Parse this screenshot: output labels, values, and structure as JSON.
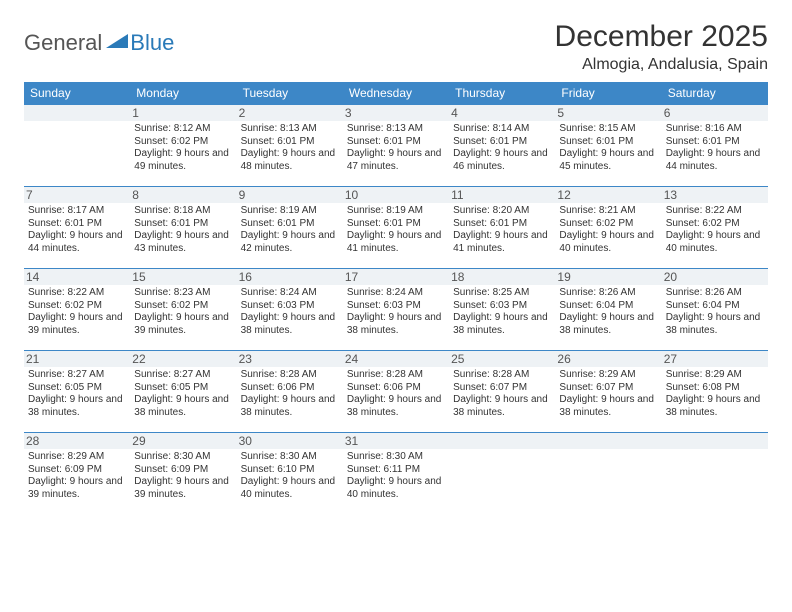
{
  "logo": {
    "general": "General",
    "blue": "Blue"
  },
  "title": "December 2025",
  "location": "Almogia, Andalusia, Spain",
  "header_bg": "#3d87c7",
  "header_fg": "#ffffff",
  "border_color": "#3d87c7",
  "daynum_bg": "#eef2f5",
  "days": [
    "Sunday",
    "Monday",
    "Tuesday",
    "Wednesday",
    "Thursday",
    "Friday",
    "Saturday"
  ],
  "weeks": [
    [
      null,
      {
        "n": "1",
        "sr": "8:12 AM",
        "ss": "6:02 PM",
        "dl": "9 hours and 49 minutes."
      },
      {
        "n": "2",
        "sr": "8:13 AM",
        "ss": "6:01 PM",
        "dl": "9 hours and 48 minutes."
      },
      {
        "n": "3",
        "sr": "8:13 AM",
        "ss": "6:01 PM",
        "dl": "9 hours and 47 minutes."
      },
      {
        "n": "4",
        "sr": "8:14 AM",
        "ss": "6:01 PM",
        "dl": "9 hours and 46 minutes."
      },
      {
        "n": "5",
        "sr": "8:15 AM",
        "ss": "6:01 PM",
        "dl": "9 hours and 45 minutes."
      },
      {
        "n": "6",
        "sr": "8:16 AM",
        "ss": "6:01 PM",
        "dl": "9 hours and 44 minutes."
      }
    ],
    [
      {
        "n": "7",
        "sr": "8:17 AM",
        "ss": "6:01 PM",
        "dl": "9 hours and 44 minutes."
      },
      {
        "n": "8",
        "sr": "8:18 AM",
        "ss": "6:01 PM",
        "dl": "9 hours and 43 minutes."
      },
      {
        "n": "9",
        "sr": "8:19 AM",
        "ss": "6:01 PM",
        "dl": "9 hours and 42 minutes."
      },
      {
        "n": "10",
        "sr": "8:19 AM",
        "ss": "6:01 PM",
        "dl": "9 hours and 41 minutes."
      },
      {
        "n": "11",
        "sr": "8:20 AM",
        "ss": "6:01 PM",
        "dl": "9 hours and 41 minutes."
      },
      {
        "n": "12",
        "sr": "8:21 AM",
        "ss": "6:02 PM",
        "dl": "9 hours and 40 minutes."
      },
      {
        "n": "13",
        "sr": "8:22 AM",
        "ss": "6:02 PM",
        "dl": "9 hours and 40 minutes."
      }
    ],
    [
      {
        "n": "14",
        "sr": "8:22 AM",
        "ss": "6:02 PM",
        "dl": "9 hours and 39 minutes."
      },
      {
        "n": "15",
        "sr": "8:23 AM",
        "ss": "6:02 PM",
        "dl": "9 hours and 39 minutes."
      },
      {
        "n": "16",
        "sr": "8:24 AM",
        "ss": "6:03 PM",
        "dl": "9 hours and 38 minutes."
      },
      {
        "n": "17",
        "sr": "8:24 AM",
        "ss": "6:03 PM",
        "dl": "9 hours and 38 minutes."
      },
      {
        "n": "18",
        "sr": "8:25 AM",
        "ss": "6:03 PM",
        "dl": "9 hours and 38 minutes."
      },
      {
        "n": "19",
        "sr": "8:26 AM",
        "ss": "6:04 PM",
        "dl": "9 hours and 38 minutes."
      },
      {
        "n": "20",
        "sr": "8:26 AM",
        "ss": "6:04 PM",
        "dl": "9 hours and 38 minutes."
      }
    ],
    [
      {
        "n": "21",
        "sr": "8:27 AM",
        "ss": "6:05 PM",
        "dl": "9 hours and 38 minutes."
      },
      {
        "n": "22",
        "sr": "8:27 AM",
        "ss": "6:05 PM",
        "dl": "9 hours and 38 minutes."
      },
      {
        "n": "23",
        "sr": "8:28 AM",
        "ss": "6:06 PM",
        "dl": "9 hours and 38 minutes."
      },
      {
        "n": "24",
        "sr": "8:28 AM",
        "ss": "6:06 PM",
        "dl": "9 hours and 38 minutes."
      },
      {
        "n": "25",
        "sr": "8:28 AM",
        "ss": "6:07 PM",
        "dl": "9 hours and 38 minutes."
      },
      {
        "n": "26",
        "sr": "8:29 AM",
        "ss": "6:07 PM",
        "dl": "9 hours and 38 minutes."
      },
      {
        "n": "27",
        "sr": "8:29 AM",
        "ss": "6:08 PM",
        "dl": "9 hours and 38 minutes."
      }
    ],
    [
      {
        "n": "28",
        "sr": "8:29 AM",
        "ss": "6:09 PM",
        "dl": "9 hours and 39 minutes."
      },
      {
        "n": "29",
        "sr": "8:30 AM",
        "ss": "6:09 PM",
        "dl": "9 hours and 39 minutes."
      },
      {
        "n": "30",
        "sr": "8:30 AM",
        "ss": "6:10 PM",
        "dl": "9 hours and 40 minutes."
      },
      {
        "n": "31",
        "sr": "8:30 AM",
        "ss": "6:11 PM",
        "dl": "9 hours and 40 minutes."
      },
      null,
      null,
      null
    ]
  ],
  "labels": {
    "sunrise": "Sunrise: ",
    "sunset": "Sunset: ",
    "daylight": "Daylight: "
  }
}
